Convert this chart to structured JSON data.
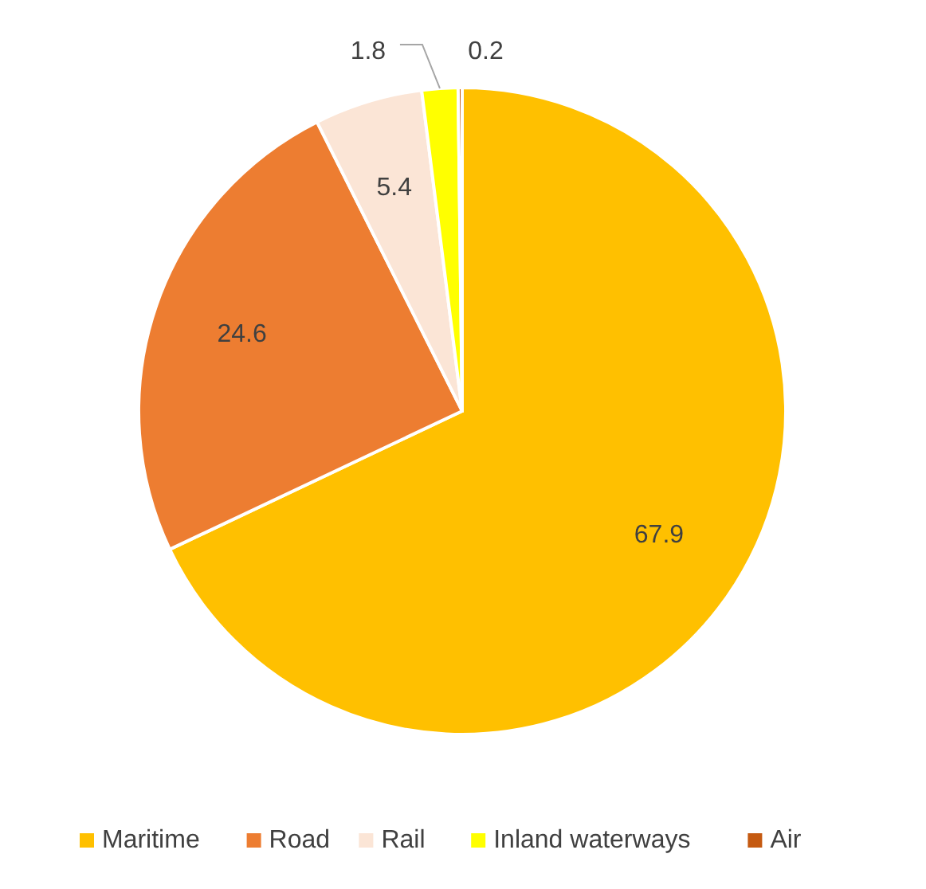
{
  "chart_data": {
    "type": "pie",
    "categories": [
      "Maritime",
      "Road",
      "Rail",
      "Inland waterways",
      "Air"
    ],
    "values": [
      67.9,
      24.6,
      5.4,
      1.8,
      0.2
    ],
    "colors": [
      "#ffc000",
      "#ed7d31",
      "#fbe5d6",
      "#ffff00",
      "#c55a11"
    ],
    "data_labels": true,
    "legend": "bottom"
  }
}
